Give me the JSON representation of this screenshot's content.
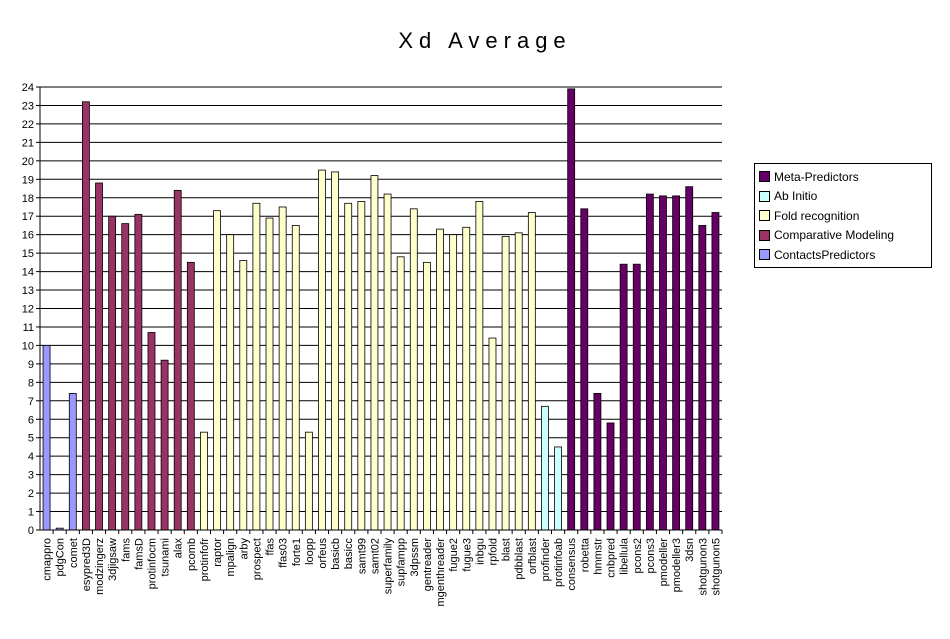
{
  "chart_data": {
    "type": "bar",
    "title": "Xd Average",
    "xlabel": "",
    "ylabel": "",
    "ylim": [
      0,
      24
    ],
    "yticks": [
      0,
      1,
      2,
      3,
      4,
      5,
      6,
      7,
      8,
      9,
      10,
      11,
      12,
      13,
      14,
      15,
      16,
      17,
      18,
      19,
      20,
      21,
      22,
      23,
      24
    ],
    "grid": true,
    "legend_position": "right",
    "legend": [
      {
        "name": "Meta-Predictors",
        "color": "#660066"
      },
      {
        "name": "Ab Initio",
        "color": "#CCFFFF"
      },
      {
        "name": "Fold recognition",
        "color": "#FFFFCC"
      },
      {
        "name": "Comparative Modeling",
        "color": "#993366"
      },
      {
        "name": "ContactsPredictors",
        "color": "#9999FF"
      }
    ],
    "categories": [
      "cmappro",
      "pdgCon",
      "comet",
      "esypred3D",
      "modzingerz",
      "3djigsaw",
      "fams",
      "famsD",
      "protinfocm",
      "tsunami",
      "alax",
      "pcomb",
      "protinfofr",
      "raptor",
      "mpalign",
      "arby",
      "prospect",
      "ffas",
      "ffas03",
      "forte1",
      "loopp",
      "orfeus",
      "basicb",
      "basicc",
      "samt99",
      "samt02",
      "superfamily",
      "supfampp",
      "3dpssm",
      "gentreader",
      "mgenthreader",
      "fugue2",
      "fugue3",
      "inbgu",
      "rpfold",
      "blast",
      "pdbblast",
      "orfblast",
      "profinder",
      "protinfoab",
      "consensus",
      "robetta",
      "hmmstr",
      "cnbpred",
      "libellula",
      "pcons2",
      "pcons3",
      "pmodeller",
      "pmodeller3",
      "3dsn",
      "shotgunon3",
      "shotgunon5"
    ],
    "values": [
      10.0,
      0.1,
      7.4,
      23.2,
      18.8,
      17.0,
      16.6,
      17.1,
      10.7,
      9.2,
      18.4,
      14.5,
      5.3,
      17.3,
      16.0,
      14.6,
      17.7,
      16.9,
      17.5,
      16.5,
      5.3,
      19.5,
      19.4,
      17.7,
      17.8,
      19.2,
      18.2,
      14.8,
      17.4,
      14.5,
      16.3,
      16.0,
      16.4,
      17.8,
      10.4,
      15.9,
      16.1,
      17.2,
      6.7,
      4.5,
      23.9,
      17.4,
      7.4,
      5.8,
      14.4,
      14.4,
      18.2,
      18.1,
      18.1,
      18.6,
      16.5,
      17.2
    ],
    "groups": [
      "ContactsPredictors",
      "ContactsPredictors",
      "ContactsPredictors",
      "Comparative Modeling",
      "Comparative Modeling",
      "Comparative Modeling",
      "Comparative Modeling",
      "Comparative Modeling",
      "Comparative Modeling",
      "Comparative Modeling",
      "Comparative Modeling",
      "Comparative Modeling",
      "Fold recognition",
      "Fold recognition",
      "Fold recognition",
      "Fold recognition",
      "Fold recognition",
      "Fold recognition",
      "Fold recognition",
      "Fold recognition",
      "Fold recognition",
      "Fold recognition",
      "Fold recognition",
      "Fold recognition",
      "Fold recognition",
      "Fold recognition",
      "Fold recognition",
      "Fold recognition",
      "Fold recognition",
      "Fold recognition",
      "Fold recognition",
      "Fold recognition",
      "Fold recognition",
      "Fold recognition",
      "Fold recognition",
      "Fold recognition",
      "Fold recognition",
      "Fold recognition",
      "Ab Initio",
      "Ab Initio",
      "Meta-Predictors",
      "Meta-Predictors",
      "Meta-Predictors",
      "Meta-Predictors",
      "Meta-Predictors",
      "Meta-Predictors",
      "Meta-Predictors",
      "Meta-Predictors",
      "Meta-Predictors",
      "Meta-Predictors",
      "Meta-Predictors",
      "Meta-Predictors"
    ]
  }
}
